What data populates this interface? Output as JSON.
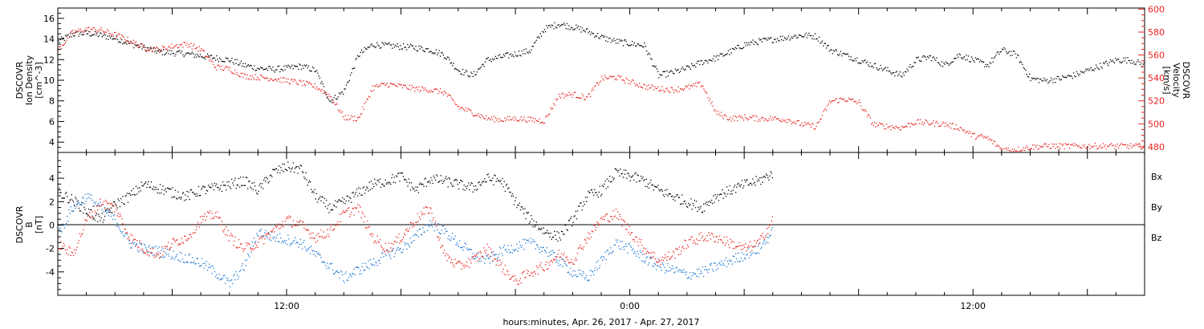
{
  "chart_data": [
    {
      "type": "scatter",
      "title": "",
      "ylabel_left": [
        "DSCOVR",
        "Ion Density",
        "[cm^-3]"
      ],
      "ylabel_right": [
        "DSCOVR",
        "Velocity",
        "[km/s]"
      ],
      "left_ylim": [
        3,
        17
      ],
      "left_ticks": [
        "4",
        "6",
        "8",
        "10",
        "12",
        "14",
        "16"
      ],
      "right_ylim": [
        475,
        601
      ],
      "right_ticks": [
        "480",
        "500",
        "520",
        "540",
        "560",
        "580",
        "600"
      ],
      "x_range_hours": [
        0,
        38
      ],
      "series": [
        {
          "axis": "left",
          "color": "#000000",
          "x": [
            0,
            0.5,
            1,
            1.5,
            2,
            2.5,
            3,
            3.5,
            4,
            4.5,
            5,
            5.5,
            6,
            6.5,
            7,
            7.5,
            8,
            8.5,
            9,
            9.5,
            10,
            10.5,
            11,
            11.5,
            12,
            12.5,
            13,
            13.5,
            14,
            14.5,
            15,
            15.5,
            16,
            16.5,
            17,
            17.5,
            18,
            18.5,
            19,
            19.5,
            20,
            20.5,
            21,
            21.5,
            22,
            22.5,
            23,
            23.5,
            24,
            24.5,
            25,
            25.5,
            26,
            26.5,
            27,
            27.5,
            28,
            28.5,
            29,
            29.5,
            30,
            30.5,
            31,
            31.5,
            32,
            32.5,
            33,
            33.5,
            34,
            34.5,
            35,
            35.5,
            36,
            36.5,
            37,
            37.5,
            38
          ],
          "y": [
            13.8,
            14.5,
            14.6,
            14.4,
            14.1,
            13.6,
            13.2,
            12.8,
            12.7,
            12.6,
            12.4,
            12.2,
            12.0,
            11.5,
            11.2,
            11.1,
            11.2,
            11.4,
            11.0,
            8.0,
            9.0,
            12.5,
            13.5,
            13.4,
            13.3,
            13.2,
            13.0,
            12.5,
            11.0,
            10.5,
            12.0,
            12.3,
            12.6,
            12.9,
            15.0,
            15.5,
            15.2,
            14.8,
            14.2,
            13.8,
            13.6,
            13.4,
            10.5,
            10.8,
            11.2,
            11.8,
            12.2,
            12.8,
            13.5,
            13.8,
            14.0,
            14.2,
            14.4,
            14.3,
            13.0,
            12.5,
            12.0,
            11.5,
            11.0,
            10.5,
            12.0,
            12.3,
            11.5,
            12.5,
            12.0,
            11.5,
            13.0,
            12.5,
            10.2,
            10.0,
            10.2,
            10.5,
            11.0,
            11.5,
            12.0,
            12.0,
            11.5
          ]
        },
        {
          "axis": "right",
          "color": "#e8231f",
          "x": [
            0,
            0.5,
            1,
            1.5,
            2,
            2.5,
            3,
            3.5,
            4,
            4.5,
            5,
            5.5,
            6,
            6.5,
            7,
            7.5,
            8,
            8.5,
            9,
            9.5,
            10,
            10.5,
            11,
            11.5,
            12,
            12.5,
            13,
            13.5,
            14,
            14.5,
            15,
            15.5,
            16,
            16.5,
            17,
            17.5,
            18,
            18.5,
            19,
            19.5,
            20,
            20.5,
            21,
            21.5,
            22,
            22.5,
            23,
            23.5,
            24,
            24.5,
            25,
            25.5,
            26,
            26.5,
            27,
            27.5,
            28,
            28.5,
            29,
            29.5,
            30,
            30.5,
            31,
            31.5,
            32,
            32.5,
            33,
            33.5,
            34,
            34.5,
            35,
            35.5,
            36,
            36.5,
            37,
            37.5,
            38
          ],
          "y": [
            565,
            580,
            583,
            582,
            578,
            573,
            567,
            565,
            568,
            570,
            565,
            550,
            548,
            542,
            541,
            540,
            538,
            536,
            533,
            525,
            506,
            505,
            532,
            535,
            533,
            531,
            530,
            528,
            515,
            510,
            505,
            504,
            505,
            504,
            503,
            525,
            526,
            523,
            540,
            541,
            537,
            533,
            531,
            530,
            532,
            535,
            510,
            505,
            506,
            505,
            505,
            504,
            500,
            498,
            520,
            522,
            519,
            500,
            498,
            497,
            502,
            501,
            500,
            497,
            490,
            488,
            478,
            478,
            480,
            481,
            481,
            481,
            481,
            481,
            481,
            481,
            481
          ]
        }
      ]
    },
    {
      "type": "scatter",
      "title": "",
      "ylabel_left": [
        "DSCOVR",
        "B",
        "[nT]"
      ],
      "left_ylim": [
        -6,
        6.2
      ],
      "left_ticks": [
        "-4",
        "-2",
        "0",
        "2",
        "4"
      ],
      "x_range_hours": [
        0,
        38
      ],
      "x_ticks": [
        "12:00",
        "0:00",
        "12:00"
      ],
      "x_tick_hours": [
        8,
        20,
        32
      ],
      "xlabel": "hours:minutes, Apr. 26, 2017 - Apr. 27, 2017",
      "legend": [
        "Bx",
        "By",
        "Bz"
      ],
      "series": [
        {
          "name": "Bx",
          "color": "#000000",
          "x": [
            0,
            0.5,
            1,
            1.5,
            2,
            2.5,
            3,
            3.5,
            4,
            4.5,
            5,
            5.5,
            6,
            6.5,
            7,
            7.5,
            8,
            8.5,
            9,
            9.5,
            10,
            10.5,
            11,
            11.5,
            12,
            12.5,
            13,
            13.5,
            14,
            14.5,
            15,
            15.5,
            16,
            16.5,
            17,
            17.5,
            18,
            18.5,
            19,
            19.5,
            20,
            20.5,
            21,
            21.5,
            22,
            22.5,
            23,
            23.5,
            24,
            24.5,
            25
          ],
          "y": [
            2.8,
            2.2,
            1.2,
            0.5,
            1.8,
            2.5,
            3.5,
            3.2,
            2.8,
            2.5,
            3.0,
            3.2,
            3.5,
            3.8,
            3.0,
            4.5,
            5.0,
            4.8,
            2.5,
            1.5,
            2.0,
            2.8,
            3.5,
            3.8,
            4.2,
            3.0,
            4.0,
            3.8,
            3.5,
            3.2,
            4.0,
            3.8,
            2.0,
            0.5,
            -0.5,
            -1.0,
            0.5,
            2.5,
            3.0,
            4.5,
            4.2,
            3.8,
            3.0,
            2.5,
            2.0,
            1.5,
            2.5,
            3.0,
            3.5,
            3.8,
            4.5
          ]
        },
        {
          "name": "By",
          "color": "#1d77d2",
          "x": [
            0,
            0.5,
            1,
            1.5,
            2,
            2.5,
            3,
            3.5,
            4,
            4.5,
            5,
            5.5,
            6,
            6.5,
            7,
            7.5,
            8,
            8.5,
            9,
            9.5,
            10,
            10.5,
            11,
            11.5,
            12,
            12.5,
            13,
            13.5,
            14,
            14.5,
            15,
            15.5,
            16,
            16.5,
            17,
            17.5,
            18,
            18.5,
            19,
            19.5,
            20,
            20.5,
            21,
            21.5,
            22,
            22.5,
            23,
            23.5,
            24,
            24.5,
            25
          ],
          "y": [
            -0.8,
            1.5,
            2.5,
            1.5,
            0.5,
            -1.5,
            -2.0,
            -2.2,
            -2.5,
            -2.8,
            -3.2,
            -4.0,
            -5.0,
            -3.5,
            -0.5,
            -1.0,
            -1.2,
            -1.5,
            -2.5,
            -3.5,
            -4.5,
            -3.8,
            -3.2,
            -2.5,
            -2.0,
            -1.0,
            0.2,
            -0.5,
            -1.5,
            -2.5,
            -3.0,
            -2.2,
            -1.8,
            -1.5,
            -2.0,
            -3.0,
            -4.0,
            -4.5,
            -3.0,
            -1.5,
            -2.0,
            -2.8,
            -3.5,
            -3.8,
            -4.2,
            -4.0,
            -3.5,
            -3.0,
            -2.5,
            -2.0,
            -0.5
          ]
        },
        {
          "name": "Bz",
          "color": "#e8231f",
          "x": [
            0,
            0.5,
            1,
            1.5,
            2,
            2.5,
            3,
            3.5,
            4,
            4.5,
            5,
            5.5,
            6,
            6.5,
            7,
            7.5,
            8,
            8.5,
            9,
            9.5,
            10,
            10.5,
            11,
            11.5,
            12,
            12.5,
            13,
            13.5,
            14,
            14.5,
            15,
            15.5,
            16,
            16.5,
            17,
            17.5,
            18,
            18.5,
            19,
            19.5,
            20,
            20.5,
            21,
            21.5,
            22,
            22.5,
            23,
            23.5,
            24,
            24.5,
            25
          ],
          "y": [
            -1.5,
            -2.5,
            0.5,
            2.0,
            1.5,
            -1.0,
            -2.0,
            -2.5,
            -1.5,
            -1.0,
            0.5,
            1.0,
            -1.0,
            -2.0,
            -1.5,
            -0.5,
            0.5,
            0.0,
            -1.0,
            -0.5,
            1.0,
            1.5,
            -1.0,
            -2.0,
            -1.0,
            0.5,
            1.5,
            -2.5,
            -3.5,
            -3.0,
            -2.0,
            -3.5,
            -4.8,
            -4.0,
            -3.5,
            -2.5,
            -3.0,
            -1.0,
            0.5,
            1.0,
            -0.5,
            -2.0,
            -3.0,
            -2.5,
            -1.5,
            -1.0,
            -1.0,
            -1.5,
            -2.0,
            -1.5,
            0.5
          ]
        }
      ]
    }
  ]
}
